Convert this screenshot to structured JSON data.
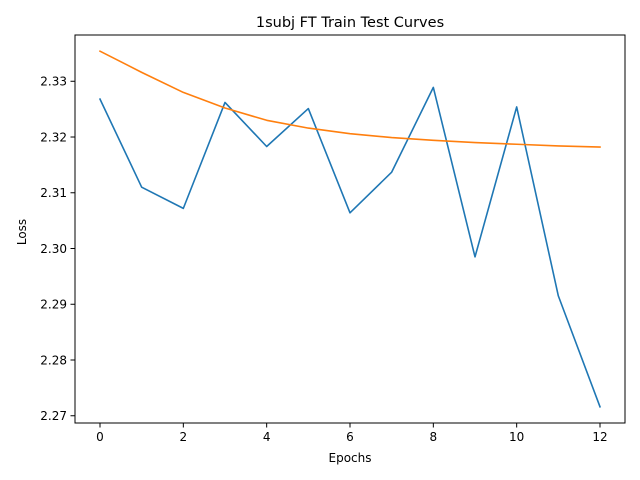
{
  "chart_data": {
    "type": "line",
    "title": "1subj FT Train Test Curves",
    "xlabel": "Epochs",
    "ylabel": "Loss",
    "xlim": [
      -0.6,
      12.6
    ],
    "ylim": [
      2.2687,
      2.3383
    ],
    "x_ticks": [
      0,
      2,
      4,
      6,
      8,
      10,
      12
    ],
    "y_ticks": [
      2.27,
      2.28,
      2.29,
      2.3,
      2.31,
      2.32,
      2.33
    ],
    "y_tick_labels": [
      "2.27",
      "2.28",
      "2.29",
      "2.30",
      "2.31",
      "2.32",
      "2.33"
    ],
    "grid": false,
    "x": [
      0,
      1,
      2,
      3,
      4,
      5,
      6,
      7,
      8,
      9,
      10,
      11,
      12
    ],
    "series": [
      {
        "color": "#1f77b4",
        "values": [
          2.3268,
          2.311,
          2.3072,
          2.3262,
          2.3183,
          2.3251,
          2.3064,
          2.3137,
          2.3289,
          2.2985,
          2.3254,
          2.2915,
          2.2716
        ]
      },
      {
        "color": "#ff7f0e",
        "values": [
          2.3354,
          2.3316,
          2.328,
          2.3252,
          2.323,
          2.3216,
          2.3206,
          2.3199,
          2.3194,
          2.319,
          2.3187,
          2.3184,
          2.3182
        ]
      }
    ]
  }
}
